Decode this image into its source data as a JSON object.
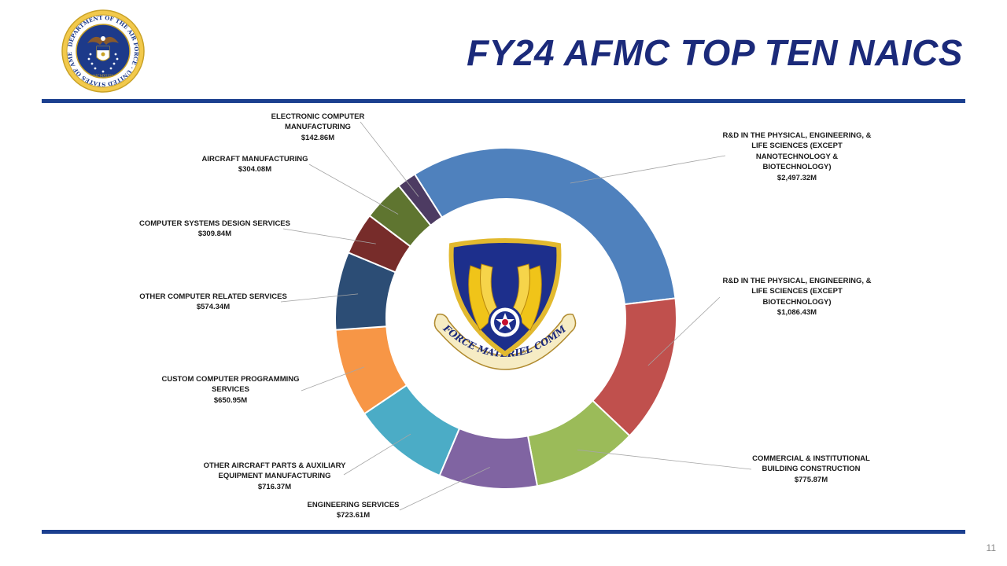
{
  "slide": {
    "title": "FY24 AFMC TOP TEN NAICS",
    "page_number": "11",
    "seal_text": "DEPARTMENT OF THE AIR FORCE · UNITED STATES OF AMERICA",
    "emblem_text": "AIR FORCE MATERIEL COMMAND",
    "accent_color": "#1b3f8f",
    "title_color": "#1b2a7a"
  },
  "chart_data": {
    "type": "pie",
    "variant": "doughnut",
    "title": "",
    "units": "$M",
    "series": [
      {
        "name": "",
        "label_lines": [
          "R&D IN THE PHYSICAL, ENGINEERING, &",
          "LIFE SCIENCES (EXCEPT",
          "NANOTECHNOLOGY &",
          "BIOTECHNOLOGY)",
          "$2,497.32M"
        ],
        "value": 2497.32,
        "color": "#4f81bd"
      },
      {
        "name": "",
        "label_lines": [
          "R&D IN THE PHYSICAL, ENGINEERING, &",
          "LIFE SCIENCES (EXCEPT",
          "BIOTECHNOLOGY)",
          "$1,086.43M"
        ],
        "value": 1086.43,
        "color": "#c0504d"
      },
      {
        "name": "",
        "label_lines": [
          "COMMERCIAL & INSTITUTIONAL",
          "BUILDING CONSTRUCTION",
          "$775.87M"
        ],
        "value": 775.87,
        "color": "#9bbb59"
      },
      {
        "name": "",
        "label_lines": [
          "ENGINEERING SERVICES",
          "$723.61M"
        ],
        "value": 723.61,
        "color": "#8064a2"
      },
      {
        "name": "",
        "label_lines": [
          "OTHER AIRCRAFT PARTS & AUXILIARY",
          "EQUIPMENT MANUFACTURING",
          "$716.37M"
        ],
        "value": 716.37,
        "color": "#4bacc6"
      },
      {
        "name": "",
        "label_lines": [
          "CUSTOM COMPUTER PROGRAMMING",
          "SERVICES",
          "$650.95M"
        ],
        "value": 650.95,
        "color": "#f79646"
      },
      {
        "name": "",
        "label_lines": [
          "OTHER COMPUTER RELATED SERVICES",
          "$574.34M"
        ],
        "value": 574.34,
        "color": "#2c4d75"
      },
      {
        "name": "",
        "label_lines": [
          "COMPUTER SYSTEMS DESIGN SERVICES",
          "$309.84M"
        ],
        "value": 309.84,
        "color": "#772c2a"
      },
      {
        "name": "",
        "label_lines": [
          "AIRCRAFT MANUFACTURING",
          "$304.08M"
        ],
        "value": 304.08,
        "color": "#5f7530"
      },
      {
        "name": "",
        "label_lines": [
          "ELECTRONIC COMPUTER",
          "MANUFACTURING",
          "$142.86M"
        ],
        "value": 142.86,
        "color": "#4d3b62"
      }
    ]
  }
}
